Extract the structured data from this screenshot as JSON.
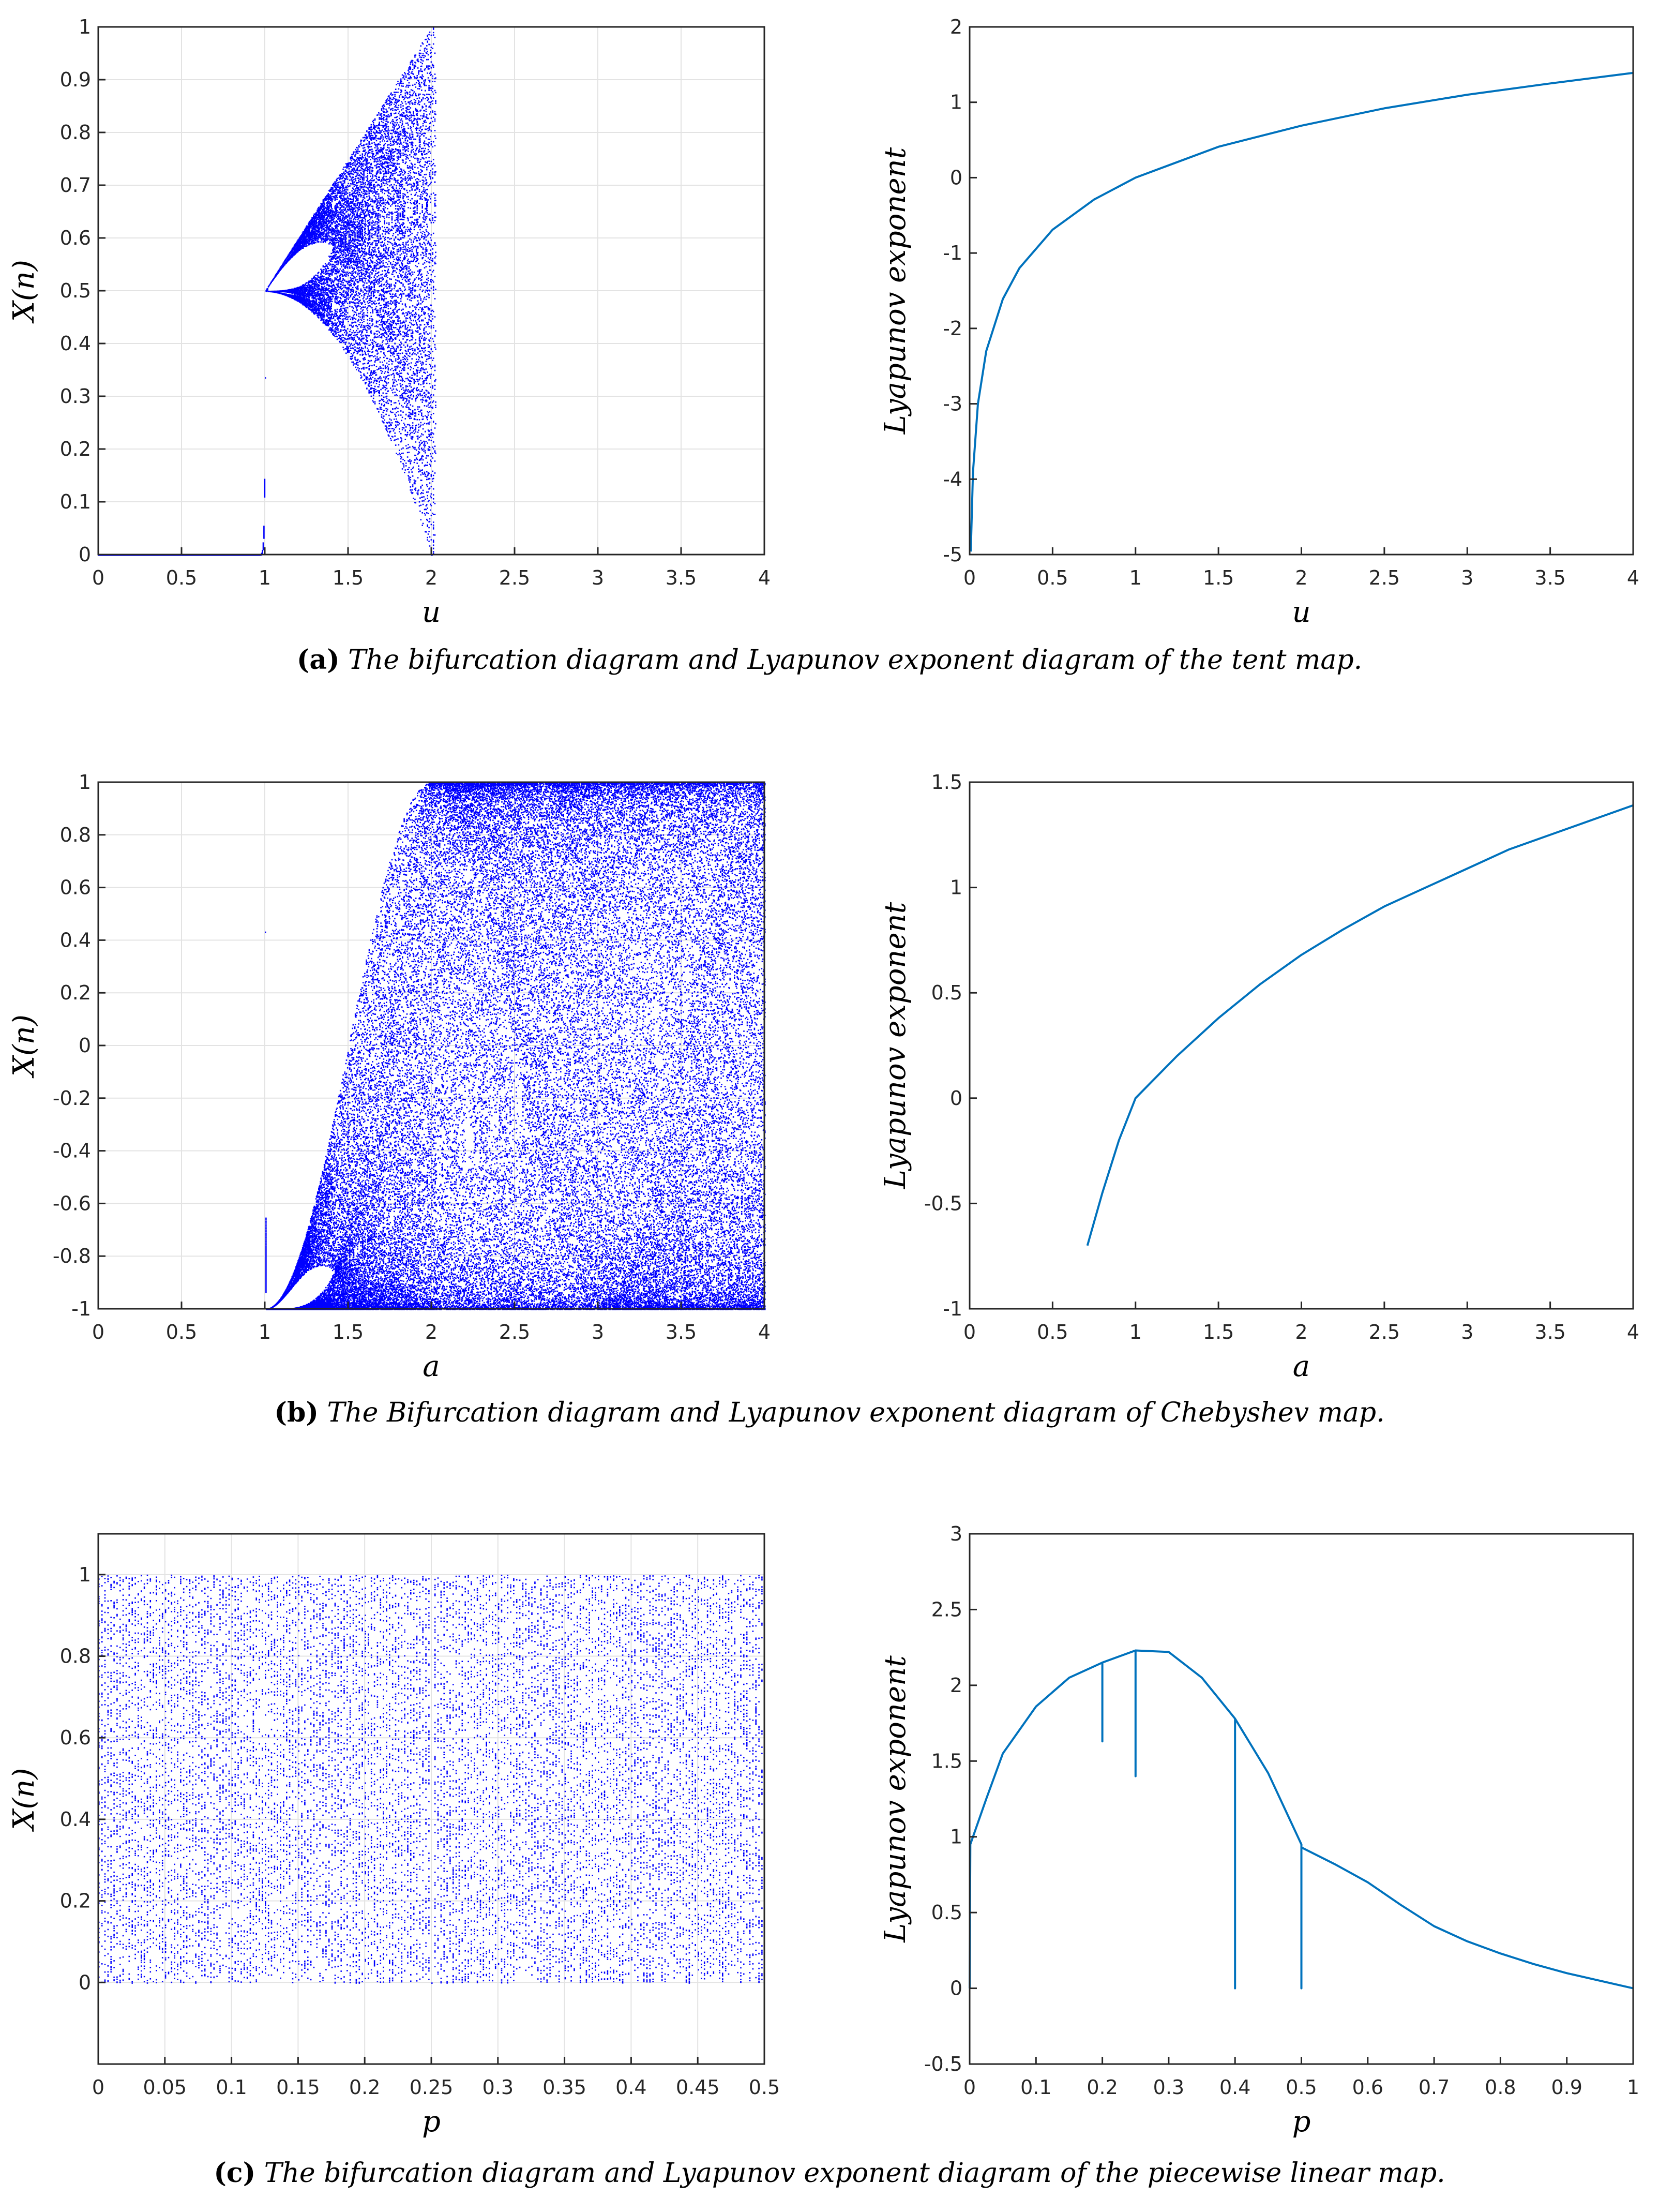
{
  "colors": {
    "bifurcation_points": "#0000ff",
    "lyapunov_line": "#0072bd",
    "grid": "#e3e3e3",
    "axis": "#262626"
  },
  "captions": [
    {
      "tag": "(a)",
      "text": "The bifurcation diagram and Lyapunov exponent diagram of the tent map."
    },
    {
      "tag": "(b)",
      "text": "The Bifurcation diagram and Lyapunov exponent diagram of Chebyshev map."
    },
    {
      "tag": "(c)",
      "text": "The bifurcation diagram and Lyapunov exponent diagram of the piecewise linear map."
    }
  ],
  "chart_data": [
    {
      "id": "a-left",
      "type": "scatter",
      "title": "",
      "map": "tent",
      "xlabel": "u",
      "ylabel": "X(n)",
      "xlim": [
        0,
        4
      ],
      "ylim": [
        0,
        1
      ],
      "xticks": [
        0,
        0.5,
        1,
        1.5,
        2,
        2.5,
        3,
        3.5,
        4
      ],
      "xtick_labels": [
        "0",
        "0.5",
        "1",
        "1.5",
        "2",
        "2.5",
        "3",
        "3.5",
        "4"
      ],
      "yticks": [
        0,
        0.1,
        0.2,
        0.3,
        0.4,
        0.5,
        0.6,
        0.7,
        0.8,
        0.9,
        1
      ],
      "ytick_labels": [
        "0",
        "0.1",
        "0.2",
        "0.3",
        "0.4",
        "0.5",
        "0.6",
        "0.7",
        "0.8",
        "0.9",
        "1"
      ],
      "grid": true,
      "param_range": [
        0,
        4
      ]
    },
    {
      "id": "a-right",
      "type": "line",
      "title": "",
      "xlabel": "u",
      "ylabel": "Lyapunov exponent",
      "xlim": [
        0,
        4
      ],
      "ylim": [
        -5,
        2
      ],
      "xticks": [
        0,
        0.5,
        1,
        1.5,
        2,
        2.5,
        3,
        3.5,
        4
      ],
      "xtick_labels": [
        "0",
        "0.5",
        "1",
        "1.5",
        "2",
        "2.5",
        "3",
        "3.5",
        "4"
      ],
      "yticks": [
        -5,
        -4,
        -3,
        -2,
        -1,
        0,
        1,
        2
      ],
      "ytick_labels": [
        "-5",
        "-4",
        "-3",
        "-2",
        "-1",
        "0",
        "1",
        "2"
      ],
      "grid": false,
      "series": [
        {
          "name": "Lyapunov exponent",
          "x": [
            0.007,
            0.02,
            0.05,
            0.1,
            0.2,
            0.3,
            0.5,
            0.75,
            1,
            1.5,
            2,
            2.5,
            3,
            3.5,
            4
          ],
          "y": [
            -4.96,
            -3.91,
            -3.0,
            -2.3,
            -1.61,
            -1.2,
            -0.69,
            -0.29,
            0.0,
            0.41,
            0.69,
            0.92,
            1.1,
            1.25,
            1.39
          ]
        }
      ]
    },
    {
      "id": "b-left",
      "type": "scatter",
      "title": "",
      "map": "chebyshev",
      "xlabel": "a",
      "ylabel": "X(n)",
      "xlim": [
        0,
        4
      ],
      "ylim": [
        -1,
        1
      ],
      "xticks": [
        0,
        0.5,
        1,
        1.5,
        2,
        2.5,
        3,
        3.5,
        4
      ],
      "xtick_labels": [
        "0",
        "0.5",
        "1",
        "1.5",
        "2",
        "2.5",
        "3",
        "3.5",
        "4"
      ],
      "yticks": [
        -1,
        -0.8,
        -0.6,
        -0.4,
        -0.2,
        0,
        0.2,
        0.4,
        0.6,
        0.8,
        1
      ],
      "ytick_labels": [
        "-1",
        "-0.8",
        "-0.6",
        "-0.4",
        "-0.2",
        "0",
        "0.2",
        "0.4",
        "0.6",
        "0.8",
        "1"
      ],
      "grid": true,
      "param_range": [
        1,
        4
      ]
    },
    {
      "id": "b-right",
      "type": "line",
      "title": "",
      "xlabel": "a",
      "ylabel": "Lyapunov exponent",
      "xlim": [
        0,
        4
      ],
      "ylim": [
        -1,
        1.5
      ],
      "xticks": [
        0,
        0.5,
        1,
        1.5,
        2,
        2.5,
        3,
        3.5,
        4
      ],
      "xtick_labels": [
        "0",
        "0.5",
        "1",
        "1.5",
        "2",
        "2.5",
        "3",
        "3.5",
        "4"
      ],
      "yticks": [
        -1,
        -0.5,
        0,
        0.5,
        1,
        1.5
      ],
      "ytick_labels": [
        "-1",
        "-0.5",
        "0",
        "0.5",
        "1",
        "1.5"
      ],
      "grid": false,
      "series": [
        {
          "name": "Lyapunov exponent",
          "x": [
            0.71,
            0.8,
            0.9,
            1.0,
            1.1,
            1.25,
            1.5,
            1.75,
            2.0,
            2.25,
            2.5,
            2.75,
            3.0,
            3.25,
            3.5,
            3.75,
            4.0
          ],
          "y": [
            -0.7,
            -0.45,
            -0.2,
            0.0,
            0.08,
            0.2,
            0.38,
            0.54,
            0.68,
            0.8,
            0.91,
            1.0,
            1.09,
            1.18,
            1.25,
            1.32,
            1.39
          ]
        }
      ]
    },
    {
      "id": "c-left",
      "type": "scatter",
      "title": "",
      "map": "pwlcm",
      "xlabel": "p",
      "ylabel": "X(n)",
      "xlim": [
        0,
        0.5
      ],
      "ylim": [
        -0.2,
        1.1
      ],
      "xticks": [
        0,
        0.05,
        0.1,
        0.15,
        0.2,
        0.25,
        0.3,
        0.35,
        0.4,
        0.45,
        0.5
      ],
      "xtick_labels": [
        "0",
        "0.05",
        "0.1",
        "0.15",
        "0.2",
        "0.25",
        "0.3",
        "0.35",
        "0.4",
        "0.45",
        "0.5"
      ],
      "yticks": [
        0,
        0.2,
        0.4,
        0.6,
        0.8,
        1
      ],
      "ytick_labels": [
        "0",
        "0.2",
        "0.4",
        "0.6",
        "0.8",
        "1"
      ],
      "grid": true,
      "param_range": [
        0,
        0.5
      ]
    },
    {
      "id": "c-right",
      "type": "line",
      "title": "",
      "xlabel": "p",
      "ylabel": "Lyapunov exponent",
      "xlim": [
        0,
        1
      ],
      "ylim": [
        -0.5,
        3
      ],
      "xticks": [
        0,
        0.1,
        0.2,
        0.3,
        0.4,
        0.5,
        0.6,
        0.7,
        0.8,
        0.9,
        1
      ],
      "xtick_labels": [
        "0",
        "0.1",
        "0.2",
        "0.3",
        "0.4",
        "0.5",
        "0.6",
        "0.7",
        "0.8",
        "0.9",
        "1"
      ],
      "yticks": [
        -0.5,
        0,
        0.5,
        1,
        1.5,
        2,
        2.5,
        3
      ],
      "ytick_labels": [
        "-0.5",
        "0",
        "0.5",
        "1",
        "1.5",
        "2",
        "2.5",
        "3"
      ],
      "grid": false,
      "series": [
        {
          "name": "Lyapunov exponent",
          "x": [
            0,
            0.001,
            0.025,
            0.05,
            0.1,
            0.15,
            0.2,
            0.2,
            0.2,
            0.25,
            0.25,
            0.25,
            0.3,
            0.35,
            0.4,
            0.4,
            0.4,
            0.45,
            0.5,
            0.5,
            0.5,
            0.55,
            0.6,
            0.65,
            0.7,
            0.75,
            0.8,
            0.85,
            0.9,
            0.95,
            1.0
          ],
          "y": [
            0,
            0.95,
            1.25,
            1.55,
            1.86,
            2.05,
            2.15,
            1.63,
            2.15,
            2.23,
            1.4,
            2.23,
            2.22,
            2.05,
            1.78,
            0.0,
            1.78,
            1.42,
            0.95,
            0.0,
            0.93,
            0.82,
            0.7,
            0.55,
            0.41,
            0.31,
            0.23,
            0.16,
            0.1,
            0.05,
            0.0
          ]
        }
      ]
    }
  ]
}
